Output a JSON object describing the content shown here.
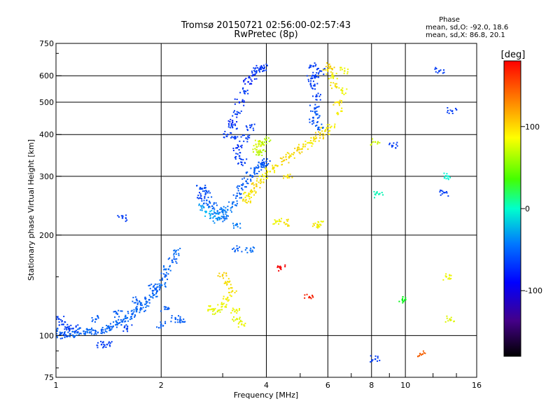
{
  "chart_data": {
    "type": "scatter",
    "title": "Tromsø 20150721 02:56:00-02:57:43",
    "subtitle": "RwPretec (8p)",
    "xlabel": "Frequency [MHz]",
    "ylabel": "Stationary phase Virtual Height [km]",
    "x_scale": "log2",
    "y_scale": "log",
    "xlim": [
      1,
      16
    ],
    "ylim": [
      75,
      750
    ],
    "x_ticks": [
      1,
      2,
      4,
      6,
      8,
      10,
      16
    ],
    "x_tick_labels": [
      "1",
      "2",
      "4",
      "6",
      "8",
      "10",
      "16"
    ],
    "y_ticks": [
      75,
      100,
      200,
      300,
      400,
      500,
      600,
      750
    ],
    "y_tick_labels": [
      "75",
      "100",
      "200",
      "300",
      "400",
      "500",
      "600",
      "750"
    ],
    "grid": true,
    "phase_box": {
      "title": "Phase",
      "line1": "mean, sd,O: -92.0, 18.6",
      "line2": "mean, sd,X: 86.8, 20.1"
    },
    "colorbar": {
      "label": "[deg]",
      "range": [
        -180,
        180
      ],
      "ticks": [
        100,
        0,
        -100
      ],
      "tick_labels": [
        "100",
        "0",
        "-100"
      ],
      "colormap": "rainbow (black → purple → blue → cyan → green → yellow → red)"
    },
    "series": [
      {
        "points": [
          [
            1.0,
            103,
            -100
          ],
          [
            1.03,
            101,
            -100
          ],
          [
            1.06,
            100,
            -105
          ],
          [
            1.1,
            101,
            -100
          ],
          [
            1.15,
            102,
            -95
          ],
          [
            1.2,
            103,
            -100
          ],
          [
            1.25,
            102,
            -95
          ],
          [
            1.3,
            103,
            -100
          ],
          [
            1.35,
            104,
            -100
          ],
          [
            1.4,
            105,
            -95
          ],
          [
            1.45,
            106,
            -100
          ],
          [
            1.5,
            108,
            -95
          ],
          [
            1.55,
            110,
            -100
          ],
          [
            1.6,
            113,
            -95
          ],
          [
            1.65,
            116,
            -100
          ],
          [
            1.7,
            118,
            -95
          ],
          [
            1.75,
            121,
            -100
          ],
          [
            1.8,
            124,
            -95
          ],
          [
            1.85,
            128,
            -100
          ],
          [
            1.9,
            132,
            -95
          ],
          [
            1.95,
            136,
            -100
          ],
          [
            2.0,
            142,
            -95
          ],
          [
            2.05,
            150,
            -100
          ],
          [
            2.1,
            158,
            -95
          ],
          [
            2.15,
            168,
            -100
          ],
          [
            2.2,
            178,
            -95
          ],
          [
            1.02,
            112,
            -110
          ],
          [
            1.05,
            108,
            -110
          ],
          [
            1.08,
            106,
            -110
          ],
          [
            1.12,
            105,
            -110
          ],
          [
            1.3,
            112,
            -100
          ],
          [
            1.5,
            116,
            -100
          ],
          [
            1.7,
            128,
            -100
          ],
          [
            1.9,
            140,
            -100
          ],
          [
            2.05,
            120,
            -100
          ],
          [
            2.2,
            112,
            -100
          ],
          [
            2.3,
            110,
            -100
          ],
          [
            2.0,
            108,
            -100
          ],
          [
            1.6,
            105,
            -110
          ],
          [
            1.35,
            94,
            -110
          ]
        ]
      },
      {
        "points": [
          [
            2.6,
            262,
            -110
          ],
          [
            2.7,
            254,
            -100
          ],
          [
            2.8,
            244,
            -100
          ],
          [
            2.9,
            236,
            -95
          ],
          [
            3.0,
            234,
            -90
          ],
          [
            3.1,
            238,
            -90
          ],
          [
            3.2,
            248,
            -95
          ],
          [
            3.3,
            262,
            -100
          ],
          [
            3.4,
            276,
            -100
          ],
          [
            3.5,
            290,
            -100
          ],
          [
            3.6,
            302,
            -100
          ],
          [
            3.7,
            312,
            -100
          ],
          [
            3.8,
            320,
            -100
          ],
          [
            3.9,
            326,
            -100
          ],
          [
            4.0,
            332,
            -105
          ],
          [
            2.65,
            242,
            -80
          ],
          [
            2.75,
            232,
            -70
          ],
          [
            2.85,
            228,
            -80
          ],
          [
            2.9,
            222,
            -85
          ],
          [
            2.7,
            270,
            -105
          ],
          [
            2.6,
            275,
            -105
          ],
          [
            3.05,
            224,
            -95
          ],
          [
            3.3,
            215,
            -90
          ]
        ]
      },
      {
        "points": [
          [
            3.2,
            420,
            -110
          ],
          [
            3.25,
            390,
            -110
          ],
          [
            3.3,
            365,
            -115
          ],
          [
            3.35,
            345,
            -110
          ],
          [
            3.4,
            330,
            -110
          ],
          [
            3.3,
            460,
            -110
          ],
          [
            3.35,
            500,
            -115
          ],
          [
            3.45,
            540,
            -110
          ],
          [
            3.55,
            575,
            -120
          ],
          [
            3.65,
            600,
            -115
          ],
          [
            3.75,
            620,
            -110
          ],
          [
            3.85,
            630,
            -115
          ],
          [
            3.9,
            635,
            -110
          ],
          [
            3.1,
            400,
            -110
          ],
          [
            3.2,
            440,
            -120
          ],
          [
            3.5,
            390,
            -110
          ],
          [
            3.6,
            420,
            -110
          ]
        ]
      },
      {
        "points": [
          [
            3.5,
            255,
            110
          ],
          [
            3.55,
            262,
            105
          ],
          [
            3.65,
            270,
            110
          ],
          [
            3.75,
            280,
            115
          ],
          [
            3.85,
            292,
            110
          ],
          [
            3.95,
            300,
            100
          ],
          [
            4.1,
            310,
            105
          ],
          [
            4.3,
            322,
            110
          ],
          [
            4.5,
            335,
            115
          ],
          [
            4.7,
            345,
            110
          ],
          [
            4.9,
            358,
            115
          ],
          [
            5.1,
            368,
            110
          ],
          [
            5.3,
            378,
            105
          ],
          [
            5.5,
            388,
            110
          ],
          [
            5.7,
            398,
            115
          ],
          [
            5.9,
            410,
            110
          ],
          [
            6.1,
            420,
            105
          ],
          [
            3.75,
            360,
            90
          ],
          [
            3.8,
            375,
            95
          ],
          [
            3.9,
            380,
            90
          ],
          [
            4.0,
            385,
            80
          ],
          [
            3.85,
            355,
            80
          ]
        ]
      },
      {
        "points": [
          [
            5.45,
            640,
            -110
          ],
          [
            5.5,
            600,
            -110
          ],
          [
            5.5,
            560,
            -110
          ],
          [
            5.55,
            520,
            -110
          ],
          [
            5.5,
            480,
            -105
          ],
          [
            5.6,
            460,
            -100
          ],
          [
            5.45,
            440,
            -105
          ],
          [
            5.65,
            420,
            -100
          ],
          [
            5.7,
            620,
            -110
          ],
          [
            5.4,
            590,
            -110
          ],
          [
            6.2,
            600,
            100
          ],
          [
            6.3,
            560,
            110
          ],
          [
            6.4,
            500,
            110
          ],
          [
            6.55,
            470,
            105
          ],
          [
            6.6,
            540,
            100
          ],
          [
            6.7,
            620,
            100
          ],
          [
            6.0,
            620,
            110
          ],
          [
            6.1,
            640,
            115
          ]
        ]
      },
      {
        "points": [
          [
            2.8,
            120,
            100
          ],
          [
            2.9,
            118,
            95
          ],
          [
            3.0,
            124,
            100
          ],
          [
            3.1,
            130,
            105
          ],
          [
            3.2,
            136,
            110
          ],
          [
            3.25,
            118,
            100
          ],
          [
            3.3,
            112,
            95
          ],
          [
            3.4,
            108,
            100
          ],
          [
            3.1,
            145,
            110
          ],
          [
            3.0,
            152,
            115
          ]
        ]
      },
      {
        "points": [
          [
            4.3,
            220,
            100
          ],
          [
            4.5,
            218,
            110
          ],
          [
            5.6,
            215,
            110
          ],
          [
            5.7,
            215,
            100
          ],
          [
            4.6,
            300,
            110
          ],
          [
            3.3,
            182,
            -100
          ],
          [
            3.6,
            180,
            -95
          ],
          [
            4.4,
            160,
            180
          ],
          [
            5.3,
            130,
            170
          ],
          [
            8.2,
            380,
            90
          ],
          [
            8.4,
            265,
            -30
          ],
          [
            9.2,
            370,
            -110
          ],
          [
            12.5,
            620,
            -110
          ],
          [
            13.6,
            470,
            -110
          ],
          [
            13.1,
            150,
            100
          ],
          [
            13.4,
            112,
            95
          ],
          [
            11.2,
            88,
            150
          ],
          [
            8.2,
            85,
            -110
          ],
          [
            9.8,
            128,
            20
          ],
          [
            1.55,
            225,
            -110
          ],
          [
            1.4,
            94,
            -110
          ],
          [
            12.9,
            268,
            -110
          ],
          [
            13.3,
            300,
            -40
          ]
        ]
      }
    ]
  }
}
